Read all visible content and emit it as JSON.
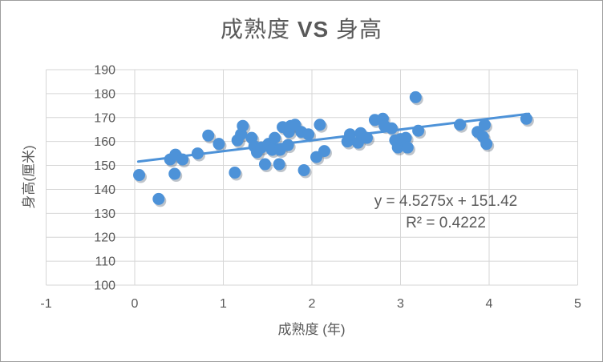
{
  "title_parts": {
    "left": "成熟度 ",
    "vs": "VS",
    "right": " 身高"
  },
  "chart_data": {
    "type": "scatter",
    "title": "成熟度 VS 身高",
    "xlabel": "成熟度 (年)",
    "ylabel": "身高(厘米)",
    "xlim": [
      -1,
      5
    ],
    "ylim": [
      100,
      190
    ],
    "xticks": [
      -1,
      0,
      1,
      2,
      3,
      4,
      5
    ],
    "yticks": [
      100,
      110,
      120,
      130,
      140,
      150,
      160,
      170,
      180,
      190
    ],
    "grid": true,
    "legend": "none",
    "points": [
      [
        0.05,
        146
      ],
      [
        0.27,
        136
      ],
      [
        0.4,
        152.5
      ],
      [
        0.45,
        146.5
      ],
      [
        0.46,
        154.5
      ],
      [
        0.54,
        152.5
      ],
      [
        0.71,
        155
      ],
      [
        0.83,
        162.5
      ],
      [
        0.95,
        159
      ],
      [
        1.13,
        147
      ],
      [
        1.16,
        160.5
      ],
      [
        1.2,
        163
      ],
      [
        1.22,
        166.5
      ],
      [
        1.32,
        161.5
      ],
      [
        1.35,
        158
      ],
      [
        1.38,
        155.5
      ],
      [
        1.43,
        157.5
      ],
      [
        1.47,
        150.5
      ],
      [
        1.51,
        159
      ],
      [
        1.55,
        156.5
      ],
      [
        1.58,
        161.5
      ],
      [
        1.63,
        150.5
      ],
      [
        1.64,
        156.5
      ],
      [
        1.67,
        166
      ],
      [
        1.73,
        158.5
      ],
      [
        1.74,
        164
      ],
      [
        1.76,
        166.5
      ],
      [
        1.81,
        167
      ],
      [
        1.88,
        164
      ],
      [
        1.91,
        148
      ],
      [
        1.96,
        163
      ],
      [
        2.05,
        153.5
      ],
      [
        2.09,
        167
      ],
      [
        2.14,
        156
      ],
      [
        2.4,
        160
      ],
      [
        2.43,
        163
      ],
      [
        2.52,
        159.5
      ],
      [
        2.55,
        163.5
      ],
      [
        2.62,
        161.5
      ],
      [
        2.71,
        169
      ],
      [
        2.8,
        169.5
      ],
      [
        2.82,
        166.5
      ],
      [
        2.9,
        165.5
      ],
      [
        2.94,
        160.5
      ],
      [
        2.97,
        157.5
      ],
      [
        3.0,
        161
      ],
      [
        3.06,
        161.5
      ],
      [
        3.08,
        157.5
      ],
      [
        3.17,
        178.5
      ],
      [
        3.2,
        164.5
      ],
      [
        3.67,
        167
      ],
      [
        3.87,
        164
      ],
      [
        3.93,
        162
      ],
      [
        3.95,
        167
      ],
      [
        3.97,
        159
      ],
      [
        4.42,
        169.5
      ]
    ],
    "trendline": {
      "slope": 4.5275,
      "intercept": 151.42,
      "x_start": 0.04,
      "x_end": 4.45,
      "equation": "y = 4.5275x + 151.42",
      "r_squared": "R² = 0.4222"
    },
    "colors": {
      "marker": "#4D92D8",
      "marker_shadow": "rgba(70,85,105,0.35)",
      "trendline": "#4D92D8",
      "grid": "#D6D6D6",
      "text": "#595959"
    }
  }
}
